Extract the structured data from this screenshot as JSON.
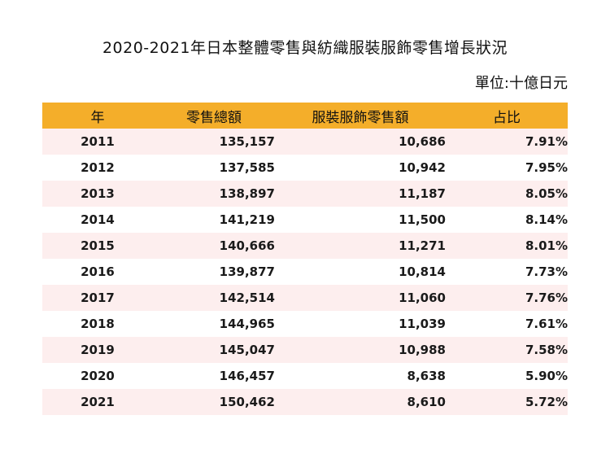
{
  "title": "2020-2021年日本整體零售與紡織服裝服飾零售增長狀況",
  "unit": "單位:十億日元",
  "header": {
    "year": "年",
    "total_retail": "零售總額",
    "apparel_retail": "服裝服飾零售額",
    "share": "占比"
  },
  "rows": [
    {
      "year": "2011",
      "total": "135,157",
      "apparel": "10,686",
      "share": "7.91%"
    },
    {
      "year": "2012",
      "total": "137,585",
      "apparel": "10,942",
      "share": "7.95%"
    },
    {
      "year": "2013",
      "total": "138,897",
      "apparel": "11,187",
      "share": "8.05%"
    },
    {
      "year": "2014",
      "total": "141,219",
      "apparel": "11,500",
      "share": "8.14%"
    },
    {
      "year": "2015",
      "total": "140,666",
      "apparel": "11,271",
      "share": "8.01%"
    },
    {
      "year": "2016",
      "total": "139,877",
      "apparel": "10,814",
      "share": "7.73%"
    },
    {
      "year": "2017",
      "total": "142,514",
      "apparel": "11,060",
      "share": "7.76%"
    },
    {
      "year": "2018",
      "total": "144,965",
      "apparel": "11,039",
      "share": "7.61%"
    },
    {
      "year": "2019",
      "total": "145,047",
      "apparel": "10,988",
      "share": "7.58%"
    },
    {
      "year": "2020",
      "total": "146,457",
      "apparel": "8,638",
      "share": "5.90%"
    },
    {
      "year": "2021",
      "total": "150,462",
      "apparel": "8,610",
      "share": "5.72%"
    }
  ],
  "colors": {
    "header_bg": "#f4ae2a",
    "stripe_bg": "#fdeeee"
  }
}
